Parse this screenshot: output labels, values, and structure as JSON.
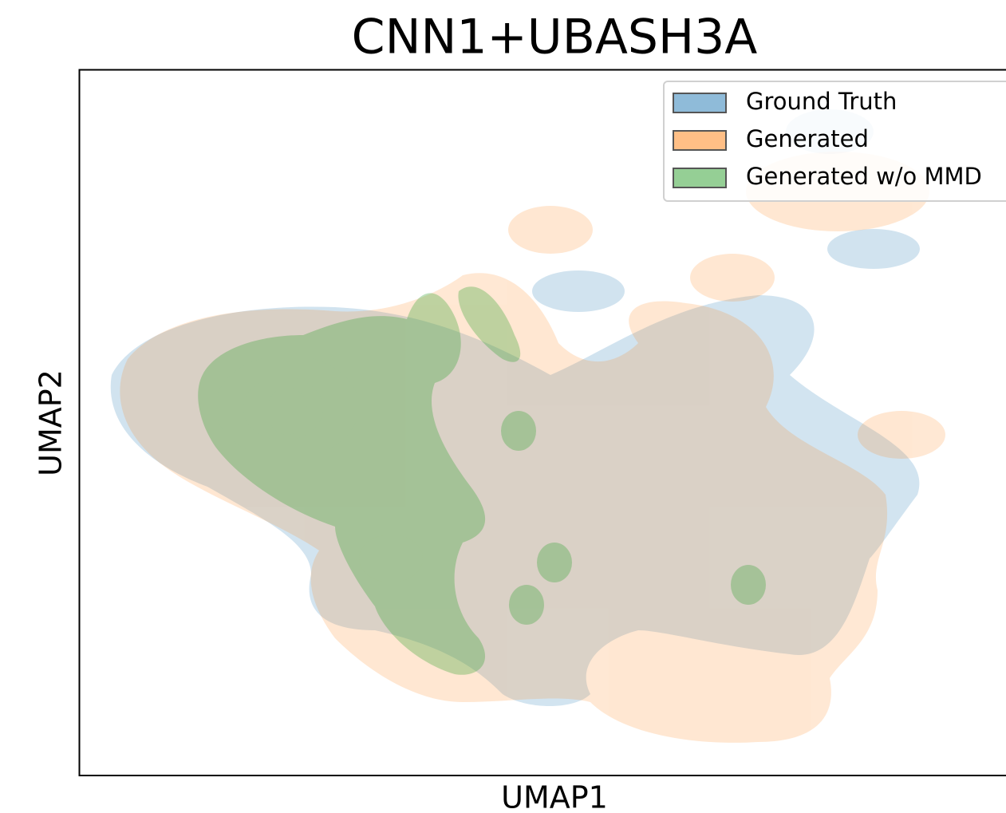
{
  "chart_data": {
    "type": "kde",
    "title": "CNN1+UBASH3A",
    "xlabel": "UMAP1",
    "ylabel": "UMAP2",
    "legend_position": "upper right",
    "series": [
      {
        "name": "Ground Truth",
        "color": "#1f77b4"
      },
      {
        "name": "Generated",
        "color": "#ff7f0e"
      },
      {
        "name": "Generated w/o MMD",
        "color": "#2ca02c"
      }
    ]
  }
}
